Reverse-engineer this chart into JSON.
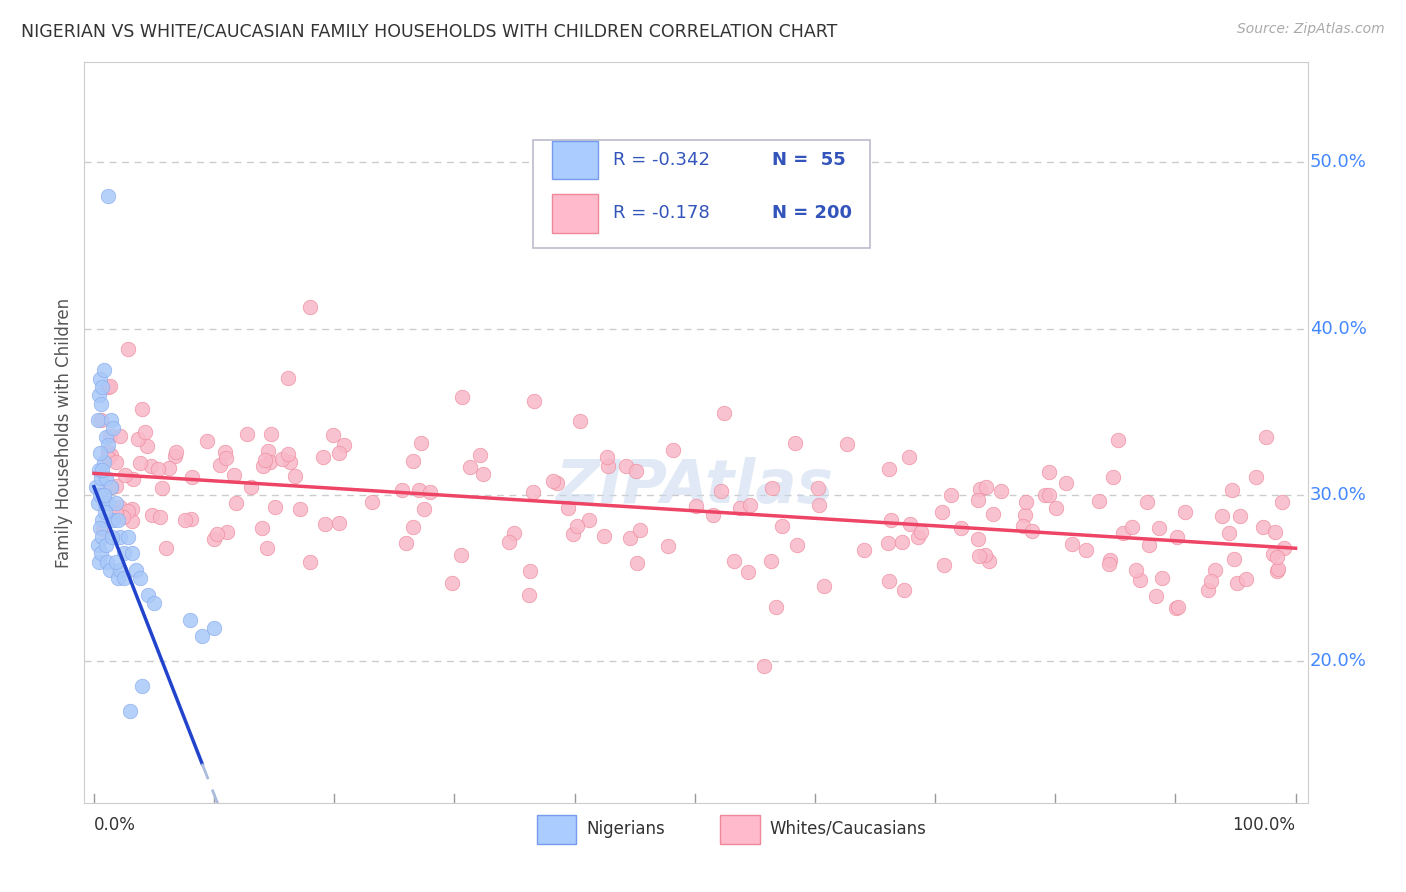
{
  "title": "NIGERIAN VS WHITE/CAUCASIAN FAMILY HOUSEHOLDS WITH CHILDREN CORRELATION CHART",
  "source": "Source: ZipAtlas.com",
  "ylabel": "Family Households with Children",
  "nigerian_color": "#a8c8f8",
  "nigerian_edge_color": "#88aaee",
  "caucasian_color": "#f8b8c8",
  "caucasian_edge_color": "#ee8899",
  "nigerian_line_color": "#2244cc",
  "caucasian_line_color": "#ee4466",
  "nigerian_line_dash_color": "#aabbdd",
  "background_color": "#ffffff",
  "ytick_values": [
    0.2,
    0.3,
    0.4,
    0.5
  ],
  "ytick_labels": [
    "20.0%",
    "30.0%",
    "40.0%",
    "50.0%"
  ],
  "ylim": [
    0.115,
    0.56
  ],
  "xlim": [
    -0.008,
    1.01
  ],
  "watermark_text": "ZIPAtlas",
  "watermark_color": "#c8d8ee",
  "grid_color": "#cccccc",
  "title_color": "#333333",
  "source_color": "#aaaaaa",
  "ytick_color": "#4488ff",
  "xtick_label_color": "#333333",
  "legend_r1": "R = -0.342",
  "legend_n1": "N =  55",
  "legend_r2": "R = -0.178",
  "legend_n2": "N = 200",
  "legend_r_color": "#3355bb",
  "legend_n_color": "#3355bb",
  "bottom_legend_labels": [
    "Nigerians",
    "Whites/Caucasians"
  ],
  "nig_line_solid_end": 0.09,
  "nig_line_dash_end": 0.55,
  "nig_line_intercept": 0.305,
  "nig_line_slope": -1.85,
  "cau_line_intercept": 0.313,
  "cau_line_slope": -0.045,
  "point_size": 110,
  "point_alpha": 0.85
}
